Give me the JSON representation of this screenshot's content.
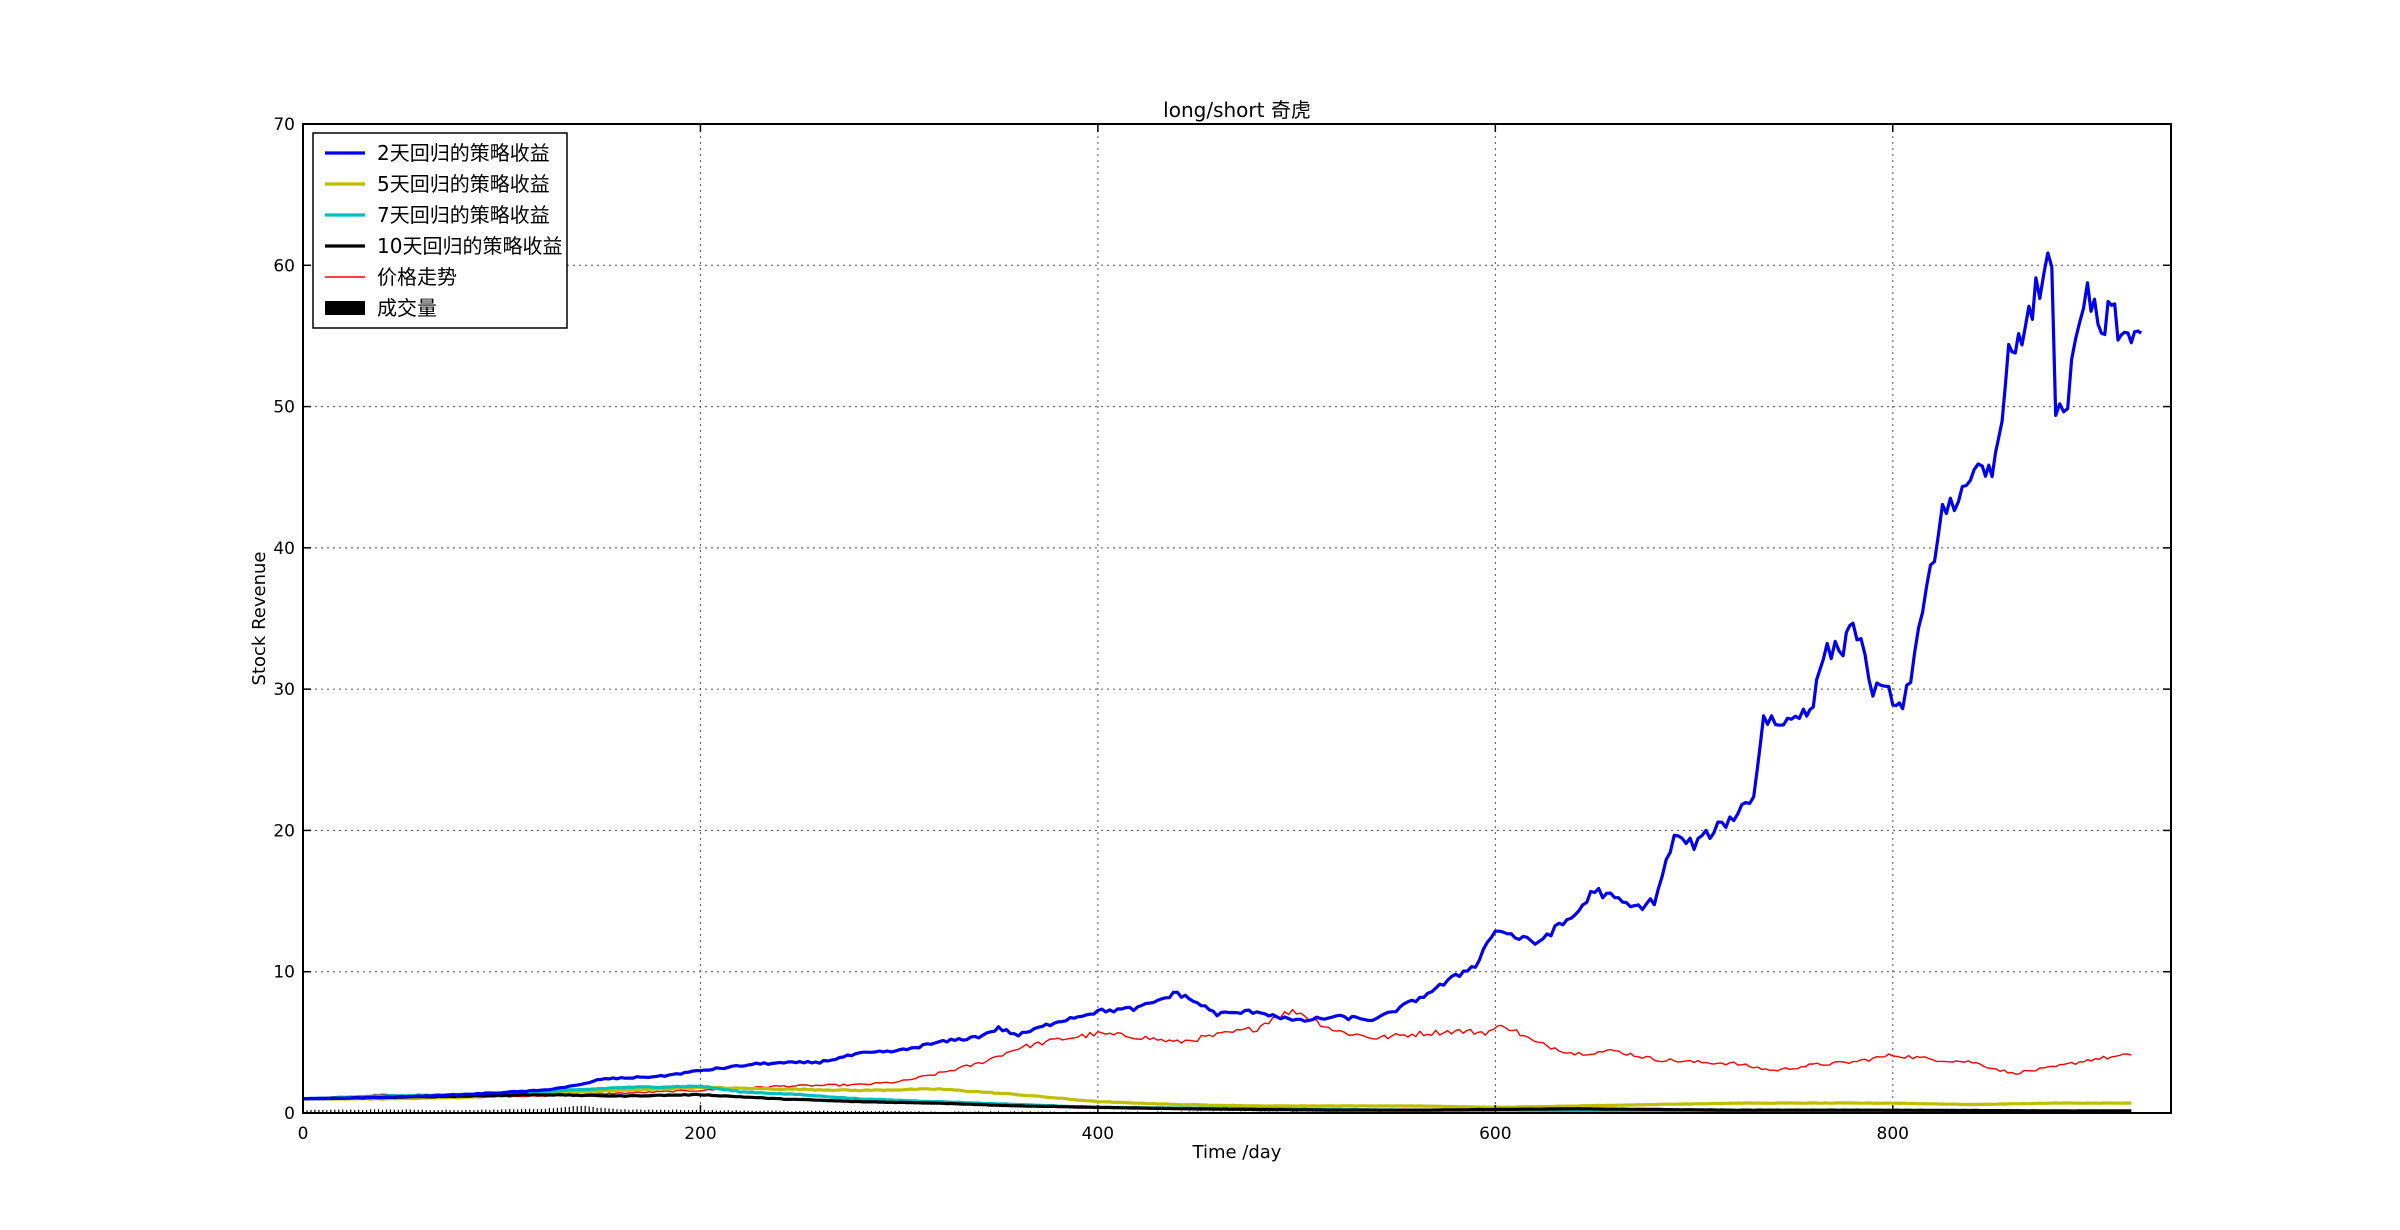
{
  "chart_data": {
    "type": "line",
    "title": "long/short 奇虎",
    "xlabel": "Time /day",
    "ylabel": "Stock Revenue",
    "xlim": [
      0,
      940
    ],
    "ylim": [
      0,
      70
    ],
    "x_ticks": [
      0,
      200,
      400,
      600,
      800
    ],
    "y_ticks": [
      0,
      10,
      20,
      30,
      40,
      50,
      60,
      70
    ],
    "grid": true,
    "legend_position": "top-left",
    "series": [
      {
        "name": "2天回归的策略收益",
        "color": "#0000ee",
        "style": "thick",
        "points": [
          [
            0,
            1.0
          ],
          [
            40,
            1.1
          ],
          [
            80,
            1.3
          ],
          [
            120,
            1.6
          ],
          [
            140,
            2.0
          ],
          [
            150,
            2.4
          ],
          [
            180,
            2.6
          ],
          [
            200,
            3.0
          ],
          [
            230,
            3.5
          ],
          [
            260,
            3.6
          ],
          [
            280,
            4.2
          ],
          [
            300,
            4.4
          ],
          [
            320,
            5.0
          ],
          [
            340,
            5.4
          ],
          [
            350,
            6.0
          ],
          [
            360,
            5.5
          ],
          [
            380,
            6.5
          ],
          [
            400,
            7.2
          ],
          [
            420,
            7.4
          ],
          [
            440,
            8.5
          ],
          [
            450,
            7.8
          ],
          [
            460,
            7.0
          ],
          [
            480,
            7.2
          ],
          [
            500,
            6.5
          ],
          [
            520,
            6.8
          ],
          [
            540,
            6.6
          ],
          [
            560,
            8.0
          ],
          [
            570,
            8.8
          ],
          [
            590,
            10.5
          ],
          [
            600,
            13.0
          ],
          [
            610,
            12.5
          ],
          [
            620,
            12.0
          ],
          [
            640,
            14.0
          ],
          [
            650,
            15.8
          ],
          [
            670,
            14.5
          ],
          [
            680,
            15.0
          ],
          [
            690,
            19.5
          ],
          [
            700,
            19.0
          ],
          [
            720,
            21.0
          ],
          [
            730,
            22.5
          ],
          [
            735,
            28.0
          ],
          [
            745,
            27.5
          ],
          [
            755,
            28.5
          ],
          [
            760,
            29.0
          ],
          [
            765,
            32.5
          ],
          [
            775,
            33.0
          ],
          [
            780,
            35.0
          ],
          [
            790,
            30.0
          ],
          [
            800,
            29.5
          ],
          [
            805,
            28.5
          ],
          [
            815,
            35.0
          ],
          [
            825,
            43.0
          ],
          [
            835,
            43.5
          ],
          [
            845,
            45.5
          ],
          [
            850,
            45.0
          ],
          [
            855,
            50.0
          ],
          [
            860,
            55.0
          ],
          [
            865,
            54.0
          ],
          [
            872,
            58.0
          ],
          [
            880,
            60.5
          ],
          [
            882,
            50.0
          ],
          [
            888,
            50.5
          ],
          [
            892,
            54.0
          ],
          [
            898,
            58.0
          ],
          [
            905,
            55.0
          ],
          [
            910,
            57.0
          ],
          [
            915,
            54.5
          ],
          [
            920,
            55.5
          ],
          [
            925,
            55.2
          ]
        ]
      },
      {
        "name": "5天回归的策略收益",
        "color": "#bfbf00",
        "style": "thick",
        "points": [
          [
            0,
            1.0
          ],
          [
            40,
            1.0
          ],
          [
            80,
            1.1
          ],
          [
            120,
            1.4
          ],
          [
            160,
            1.6
          ],
          [
            200,
            1.8
          ],
          [
            240,
            1.7
          ],
          [
            280,
            1.6
          ],
          [
            320,
            1.7
          ],
          [
            360,
            1.3
          ],
          [
            400,
            0.8
          ],
          [
            440,
            0.6
          ],
          [
            480,
            0.5
          ],
          [
            520,
            0.5
          ],
          [
            560,
            0.5
          ],
          [
            600,
            0.4
          ],
          [
            640,
            0.5
          ],
          [
            680,
            0.6
          ],
          [
            720,
            0.7
          ],
          [
            760,
            0.7
          ],
          [
            800,
            0.7
          ],
          [
            840,
            0.6
          ],
          [
            880,
            0.7
          ],
          [
            920,
            0.7
          ]
        ]
      },
      {
        "name": "7天回归的策略收益",
        "color": "#00bfbf",
        "style": "thick",
        "points": [
          [
            0,
            1.0
          ],
          [
            40,
            1.2
          ],
          [
            80,
            1.3
          ],
          [
            120,
            1.5
          ],
          [
            160,
            1.8
          ],
          [
            200,
            1.9
          ],
          [
            220,
            1.5
          ],
          [
            250,
            1.3
          ],
          [
            280,
            1.0
          ],
          [
            320,
            0.8
          ],
          [
            360,
            0.6
          ],
          [
            400,
            0.4
          ],
          [
            440,
            0.35
          ],
          [
            480,
            0.3
          ],
          [
            520,
            0.25
          ],
          [
            560,
            0.2
          ],
          [
            600,
            0.2
          ],
          [
            640,
            0.18
          ],
          [
            680,
            0.15
          ],
          [
            720,
            0.12
          ],
          [
            760,
            0.1
          ],
          [
            800,
            0.1
          ],
          [
            840,
            0.1
          ],
          [
            880,
            0.1
          ],
          [
            920,
            0.1
          ]
        ]
      },
      {
        "name": "10天回归的策略收益",
        "color": "#000000",
        "style": "thick",
        "points": [
          [
            0,
            1.0
          ],
          [
            40,
            1.1
          ],
          [
            80,
            1.2
          ],
          [
            120,
            1.3
          ],
          [
            160,
            1.2
          ],
          [
            200,
            1.3
          ],
          [
            240,
            1.0
          ],
          [
            280,
            0.8
          ],
          [
            320,
            0.7
          ],
          [
            360,
            0.5
          ],
          [
            400,
            0.4
          ],
          [
            440,
            0.3
          ],
          [
            480,
            0.25
          ],
          [
            520,
            0.2
          ],
          [
            560,
            0.2
          ],
          [
            600,
            0.25
          ],
          [
            640,
            0.3
          ],
          [
            680,
            0.25
          ],
          [
            720,
            0.2
          ],
          [
            760,
            0.2
          ],
          [
            800,
            0.2
          ],
          [
            840,
            0.18
          ],
          [
            880,
            0.15
          ],
          [
            920,
            0.15
          ]
        ]
      },
      {
        "name": "价格走势",
        "color": "#ff0000",
        "style": "thin",
        "points": [
          [
            0,
            1.0
          ],
          [
            40,
            1.3
          ],
          [
            80,
            1.1
          ],
          [
            120,
            1.2
          ],
          [
            160,
            1.4
          ],
          [
            200,
            1.6
          ],
          [
            240,
            1.9
          ],
          [
            280,
            2.0
          ],
          [
            300,
            2.2
          ],
          [
            320,
            2.8
          ],
          [
            340,
            3.5
          ],
          [
            360,
            4.6
          ],
          [
            380,
            5.2
          ],
          [
            400,
            5.6
          ],
          [
            420,
            5.4
          ],
          [
            440,
            5.0
          ],
          [
            460,
            5.5
          ],
          [
            480,
            6.0
          ],
          [
            490,
            6.9
          ],
          [
            500,
            7.2
          ],
          [
            510,
            6.5
          ],
          [
            520,
            5.8
          ],
          [
            540,
            5.3
          ],
          [
            560,
            5.6
          ],
          [
            580,
            5.8
          ],
          [
            595,
            5.7
          ],
          [
            605,
            6.2
          ],
          [
            620,
            5.0
          ],
          [
            640,
            4.2
          ],
          [
            660,
            4.4
          ],
          [
            680,
            3.8
          ],
          [
            700,
            3.6
          ],
          [
            720,
            3.5
          ],
          [
            740,
            3.0
          ],
          [
            760,
            3.4
          ],
          [
            780,
            3.6
          ],
          [
            800,
            4.1
          ],
          [
            820,
            3.8
          ],
          [
            840,
            3.6
          ],
          [
            860,
            2.8
          ],
          [
            880,
            3.2
          ],
          [
            900,
            3.8
          ],
          [
            920,
            4.1
          ]
        ]
      },
      {
        "name": "成交量",
        "color": "#000000",
        "style": "bars",
        "points": [
          [
            0,
            0.2
          ],
          [
            40,
            0.25
          ],
          [
            80,
            0.2
          ],
          [
            120,
            0.3
          ],
          [
            140,
            0.5
          ],
          [
            160,
            0.25
          ],
          [
            200,
            0.2
          ],
          [
            240,
            0.15
          ],
          [
            280,
            0.15
          ],
          [
            320,
            0.1
          ],
          [
            360,
            0.1
          ],
          [
            400,
            0.08
          ],
          [
            440,
            0.08
          ],
          [
            480,
            0.08
          ],
          [
            520,
            0.07
          ],
          [
            560,
            0.07
          ],
          [
            600,
            0.07
          ],
          [
            640,
            0.06
          ],
          [
            680,
            0.06
          ],
          [
            720,
            0.06
          ],
          [
            760,
            0.06
          ],
          [
            800,
            0.05
          ],
          [
            840,
            0.05
          ],
          [
            880,
            0.05
          ],
          [
            920,
            0.05
          ]
        ]
      }
    ]
  }
}
